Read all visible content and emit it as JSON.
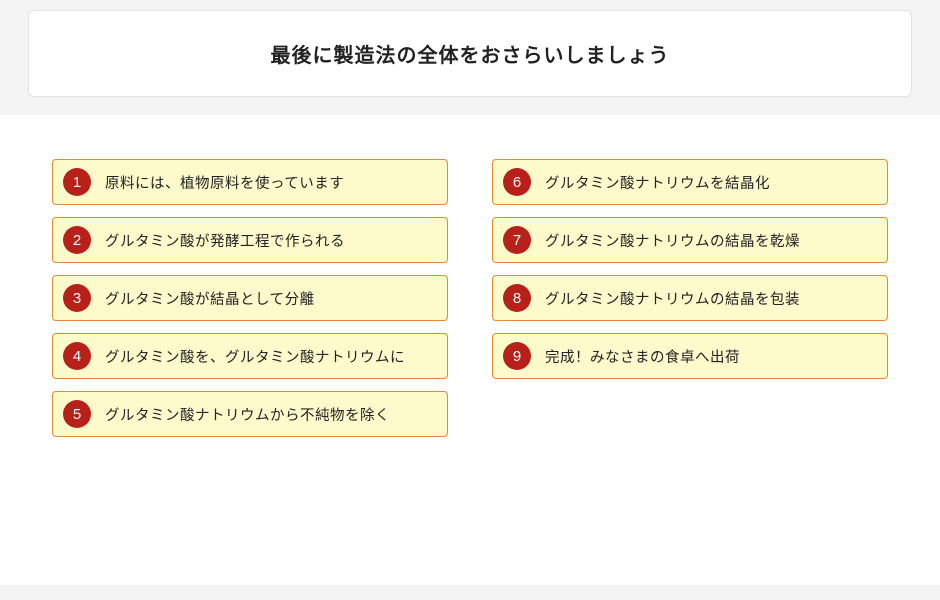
{
  "title": "最後に製造法の全体をおさらいしましょう",
  "colors": {
    "page_bg": "#f4f4f4",
    "content_bg": "#ffffff",
    "title_border": "#e3e3e3",
    "step_bg": "#fdfacb",
    "step_border": "#e78a2e",
    "badge_bg": "#b8201a",
    "badge_fg": "#ffffff",
    "text": "#222222"
  },
  "layout": {
    "columns": 2,
    "rows_per_column": 5,
    "step_height": 46,
    "badge_diameter": 28
  },
  "left": [
    {
      "n": "1",
      "label": "原料には、植物原料を使っています"
    },
    {
      "n": "2",
      "label": "グルタミン酸が発酵工程で作られる"
    },
    {
      "n": "3",
      "label": "グルタミン酸が結晶として分離"
    },
    {
      "n": "4",
      "label": "グルタミン酸を、グルタミン酸ナトリウムに"
    },
    {
      "n": "5",
      "label": "グルタミン酸ナトリウムから不純物を除く"
    }
  ],
  "right": [
    {
      "n": "6",
      "label": "グルタミン酸ナトリウムを結晶化"
    },
    {
      "n": "7",
      "label": "グルタミン酸ナトリウムの結晶を乾燥"
    },
    {
      "n": "8",
      "label": "グルタミン酸ナトリウムの結晶を包装"
    },
    {
      "n": "9",
      "label": "完成！みなさまの食卓へ出荷"
    }
  ]
}
